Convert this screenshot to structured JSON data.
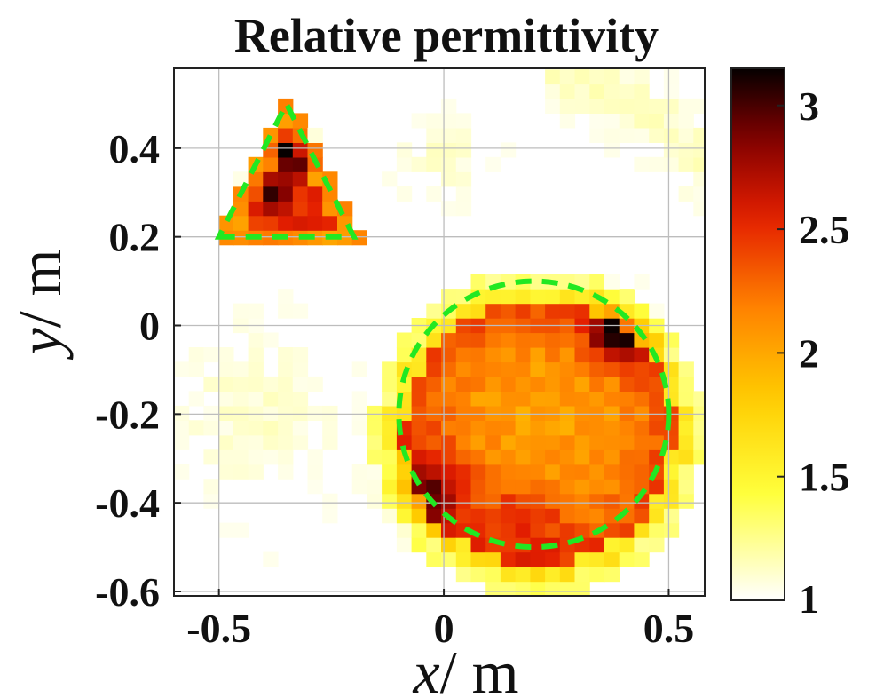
{
  "chart_data": {
    "type": "heatmap",
    "title": "Relative permittivity",
    "xlabel": {
      "var": "x",
      "unit": "/ m"
    },
    "ylabel": {
      "var": "y",
      "unit": "/ m"
    },
    "xlim": [
      -0.6,
      0.58
    ],
    "ylim": [
      -0.61,
      0.58
    ],
    "xticks": [
      {
        "v": -0.5,
        "label": "-0.5"
      },
      {
        "v": 0,
        "label": "0"
      },
      {
        "v": 0.5,
        "label": "0.5"
      }
    ],
    "yticks": [
      {
        "v": 0.4,
        "label": "0.4"
      },
      {
        "v": 0.2,
        "label": "0.2"
      },
      {
        "v": 0,
        "label": "0"
      },
      {
        "v": -0.2,
        "label": "-0.2"
      },
      {
        "v": -0.4,
        "label": "-0.4"
      },
      {
        "v": -0.6,
        "label": "-0.6"
      }
    ],
    "colorbar": {
      "colormap": "hot (reversed)",
      "range": [
        1,
        3.15
      ],
      "ticks": [
        {
          "v": 1,
          "label": "1"
        },
        {
          "v": 1.5,
          "label": "1.5"
        },
        {
          "v": 2,
          "label": "2"
        },
        {
          "v": 2.5,
          "label": "2.5"
        },
        {
          "v": 3,
          "label": "3"
        }
      ]
    },
    "grid": true,
    "cell_size": 0.033,
    "objects": [
      {
        "shape": "triangle",
        "vertices": [
          [
            -0.5,
            0.2
          ],
          [
            -0.2,
            0.2
          ],
          [
            -0.35,
            0.5
          ]
        ],
        "outline_color": "#22e822",
        "outline_style": "dashed"
      },
      {
        "shape": "circle",
        "center": [
          0.2,
          -0.2
        ],
        "radius": 0.3,
        "outline_color": "#22e822",
        "outline_style": "dashed"
      }
    ],
    "features": [
      {
        "type": "tri",
        "x1": -0.5,
        "x2": -0.2,
        "yb": 0.2,
        "yt": 0.5,
        "vedge": 2.1,
        "vin": 2.5
      },
      {
        "type": "disk",
        "cx": 0.21,
        "cy": -0.24,
        "r": 0.3,
        "edge": 0.07,
        "vcore": 2.05,
        "vring": 2.45
      },
      {
        "type": "blob",
        "x": 0.38,
        "y": -0.02,
        "s": 0.06,
        "a": 0.9
      },
      {
        "type": "blob",
        "x": -0.02,
        "y": -0.36,
        "s": 0.09,
        "a": 0.55
      },
      {
        "type": "blob",
        "x": 0.18,
        "y": -0.44,
        "s": 0.1,
        "a": 0.35
      },
      {
        "type": "blob",
        "x": -0.34,
        "y": 0.39,
        "s": 0.04,
        "a": 0.8
      },
      {
        "type": "blob",
        "x": -0.39,
        "y": 0.3,
        "s": 0.04,
        "a": 0.6
      },
      {
        "type": "ring",
        "cx": 0.2,
        "cy": 0.05,
        "r": 0.5,
        "w": 0.07,
        "a": 0.13,
        "a0": -0.2,
        "a1": 1.5
      },
      {
        "type": "haze",
        "x": -0.42,
        "y": -0.2,
        "s": 0.17,
        "a": 0.11
      },
      {
        "type": "haze",
        "x": 0.0,
        "y": 0.38,
        "s": 0.09,
        "a": 0.1
      }
    ]
  }
}
